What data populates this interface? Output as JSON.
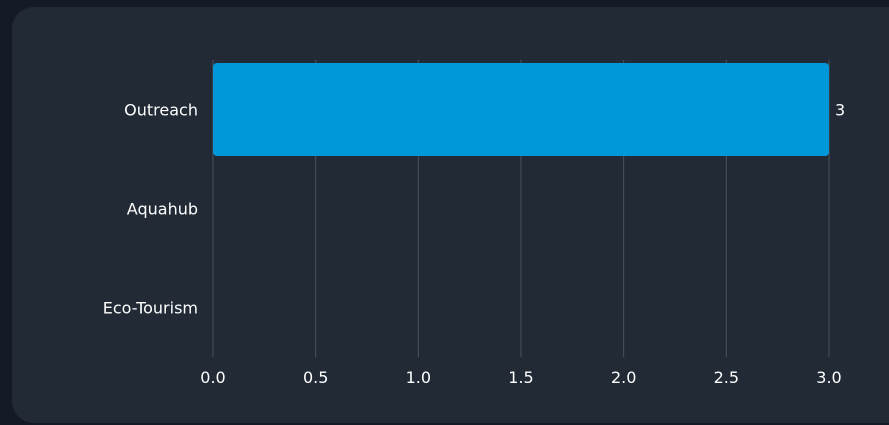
{
  "chart_data": {
    "type": "bar",
    "orientation": "horizontal",
    "categories": [
      "Outreach",
      "Aquahub",
      "Eco-Tourism"
    ],
    "values": [
      3,
      0,
      0
    ],
    "data_labels": [
      "3",
      "",
      ""
    ],
    "xlim": [
      0,
      3
    ],
    "x_ticks": [
      "0.0",
      "0.5",
      "1.0",
      "1.5",
      "2.0",
      "2.5",
      "3.0"
    ],
    "title": "",
    "xlabel": "",
    "ylabel": "",
    "grid": "vertical",
    "legend": "none",
    "colors": {
      "bar": "#0098d8",
      "grid": "#4a535e",
      "text": "#ffffff",
      "card": "#212a35",
      "page": "#141b27"
    }
  }
}
